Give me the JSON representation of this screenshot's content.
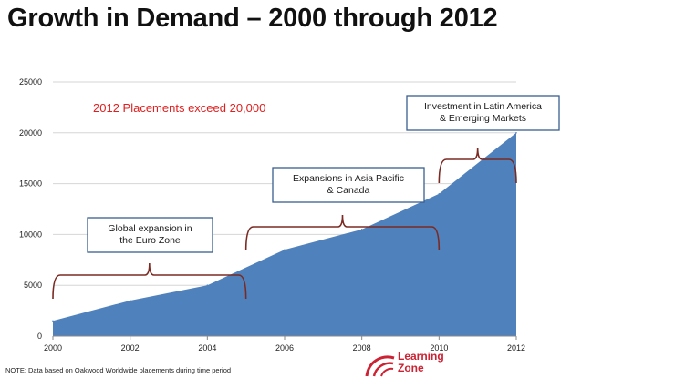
{
  "page": {
    "title": "Growth in Demand – 2000 through 2012"
  },
  "chart_data": {
    "type": "area",
    "x": [
      2000,
      2002,
      2004,
      2006,
      2008,
      2010,
      2012
    ],
    "values": [
      1500,
      3500,
      5000,
      8500,
      10500,
      14000,
      20000
    ],
    "xticks": [
      2000,
      2002,
      2004,
      2006,
      2008,
      2010,
      2012
    ],
    "yticks": [
      0,
      5000,
      10000,
      15000,
      20000,
      25000
    ],
    "xlim": [
      2000,
      2012
    ],
    "ylim": [
      0,
      25000
    ],
    "grid": true,
    "fill_color": "#4f81bd",
    "callout": {
      "text": "2012 Placements exceed 20,000",
      "color": "#e02020"
    },
    "annotations": [
      {
        "label": "global",
        "lines": [
          "Global expansion in",
          "the Euro Zone"
        ],
        "span": [
          2000,
          2005
        ]
      },
      {
        "label": "asia",
        "lines": [
          "Expansions in Asia Pacific",
          "& Canada"
        ],
        "span": [
          2005,
          2010
        ]
      },
      {
        "label": "latam",
        "lines": [
          "Investment in Latin America",
          "& Emerging Markets"
        ],
        "span": [
          2010,
          2012
        ]
      }
    ],
    "bracket_color": "#7b2a22"
  },
  "footer": {
    "note": "NOTE:  Data based on Oakwood Worldwide placements during time period",
    "logo_line1": "Learning",
    "logo_line2": "Zone",
    "logo_color": "#cc2233"
  }
}
